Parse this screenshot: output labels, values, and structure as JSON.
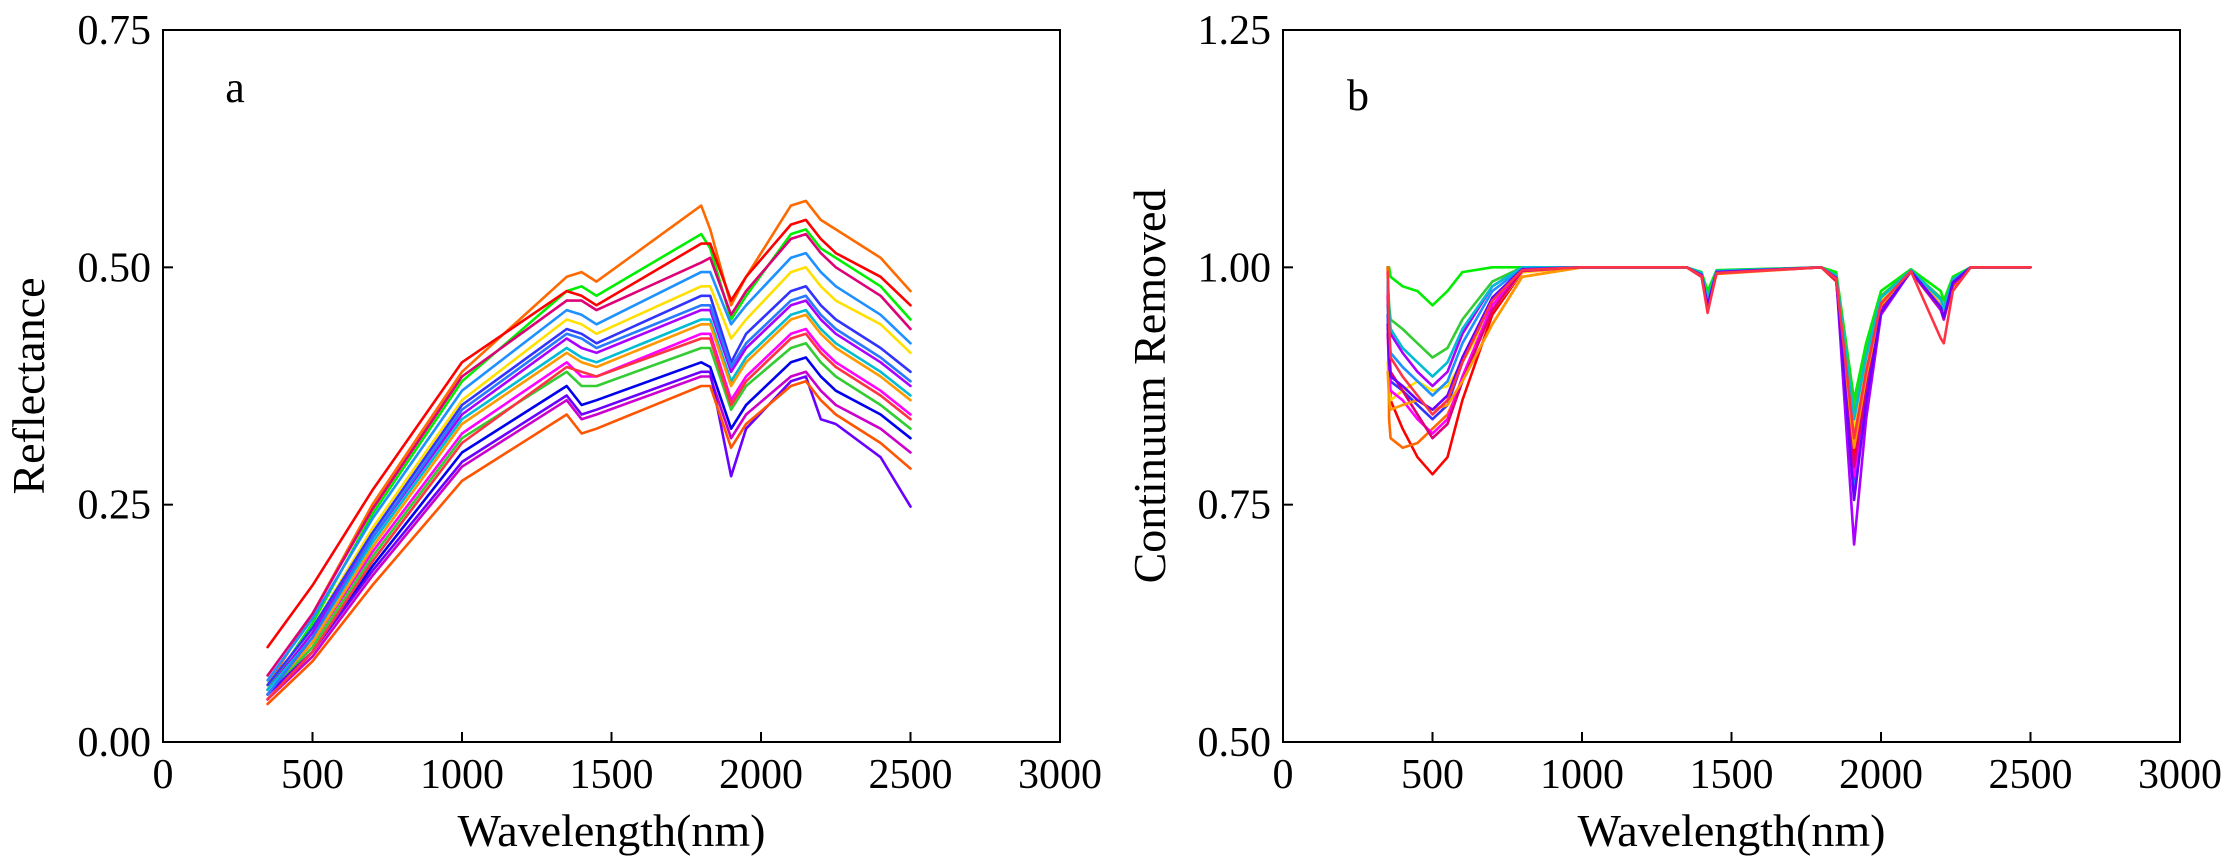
{
  "chart_data": [
    {
      "panel": "a",
      "type": "line",
      "title": "",
      "xlabel": "Wavelength(nm)",
      "ylabel": "Reflectance",
      "xlim": [
        0,
        3000
      ],
      "ylim": [
        0.0,
        0.75
      ],
      "xticks": [
        0,
        500,
        1000,
        1500,
        2000,
        2500,
        3000
      ],
      "xtick_labels": [
        "0",
        "500",
        "1000",
        "1500",
        "2000",
        "2500",
        "3000"
      ],
      "yticks": [
        0.0,
        0.25,
        0.5,
        0.75
      ],
      "ytick_labels": [
        "0.00",
        "0.25",
        "0.50",
        "0.75"
      ],
      "grid": false,
      "legend": "none",
      "x": [
        350,
        500,
        700,
        1000,
        1350,
        1400,
        1450,
        1800,
        1830,
        1900,
        1950,
        2100,
        2150,
        2200,
        2250,
        2400,
        2500
      ],
      "series": [
        {
          "name": "s1",
          "color": "#ff6a00",
          "values": [
            0.06,
            0.135,
            0.25,
            0.39,
            0.49,
            0.495,
            0.485,
            0.565,
            0.54,
            0.46,
            0.49,
            0.565,
            0.57,
            0.55,
            0.54,
            0.51,
            0.475
          ]
        },
        {
          "name": "s2",
          "color": "#00ee00",
          "values": [
            0.055,
            0.125,
            0.24,
            0.38,
            0.475,
            0.48,
            0.47,
            0.535,
            0.52,
            0.445,
            0.47,
            0.535,
            0.54,
            0.52,
            0.51,
            0.48,
            0.445
          ]
        },
        {
          "name": "s3",
          "color": "#ff0000",
          "values": [
            0.1,
            0.165,
            0.265,
            0.4,
            0.475,
            0.47,
            0.46,
            0.525,
            0.525,
            0.465,
            0.49,
            0.545,
            0.55,
            0.53,
            0.515,
            0.49,
            0.46
          ]
        },
        {
          "name": "s4",
          "color": "#dd0077",
          "values": [
            0.07,
            0.135,
            0.245,
            0.385,
            0.465,
            0.465,
            0.455,
            0.505,
            0.51,
            0.45,
            0.475,
            0.53,
            0.535,
            0.515,
            0.5,
            0.47,
            0.435
          ]
        },
        {
          "name": "s5",
          "color": "#1e90ff",
          "values": [
            0.065,
            0.13,
            0.235,
            0.37,
            0.455,
            0.45,
            0.44,
            0.495,
            0.495,
            0.44,
            0.46,
            0.51,
            0.515,
            0.495,
            0.48,
            0.45,
            0.42
          ]
        },
        {
          "name": "s6",
          "color": "#ffe000",
          "values": [
            0.06,
            0.12,
            0.225,
            0.36,
            0.445,
            0.44,
            0.43,
            0.48,
            0.48,
            0.425,
            0.445,
            0.495,
            0.5,
            0.48,
            0.465,
            0.44,
            0.41
          ]
        },
        {
          "name": "s7",
          "color": "#3333ff",
          "values": [
            0.06,
            0.12,
            0.22,
            0.355,
            0.435,
            0.43,
            0.42,
            0.47,
            0.47,
            0.4,
            0.43,
            0.475,
            0.48,
            0.46,
            0.445,
            0.415,
            0.39
          ]
        },
        {
          "name": "s8",
          "color": "#aa00ff",
          "values": [
            0.055,
            0.115,
            0.215,
            0.345,
            0.425,
            0.415,
            0.41,
            0.455,
            0.455,
            0.39,
            0.415,
            0.46,
            0.465,
            0.445,
            0.43,
            0.4,
            0.375
          ]
        },
        {
          "name": "s9",
          "color": "#00bcd4",
          "values": [
            0.055,
            0.11,
            0.21,
            0.34,
            0.415,
            0.405,
            0.4,
            0.445,
            0.445,
            0.38,
            0.405,
            0.45,
            0.455,
            0.435,
            0.42,
            0.39,
            0.365
          ]
        },
        {
          "name": "s10",
          "color": "#ff00ff",
          "values": [
            0.05,
            0.105,
            0.2,
            0.325,
            0.4,
            0.385,
            0.385,
            0.43,
            0.43,
            0.36,
            0.385,
            0.43,
            0.435,
            0.415,
            0.4,
            0.37,
            0.345
          ]
        },
        {
          "name": "s11",
          "color": "#ff9900",
          "values": [
            0.05,
            0.105,
            0.205,
            0.335,
            0.41,
            0.4,
            0.395,
            0.44,
            0.44,
            0.375,
            0.4,
            0.445,
            0.45,
            0.43,
            0.415,
            0.385,
            0.36
          ]
        },
        {
          "name": "s12",
          "color": "#33cc33",
          "values": [
            0.05,
            0.1,
            0.195,
            0.32,
            0.39,
            0.375,
            0.375,
            0.415,
            0.415,
            0.35,
            0.375,
            0.415,
            0.42,
            0.4,
            0.385,
            0.355,
            0.33
          ]
        },
        {
          "name": "s13",
          "color": "#0000ee",
          "values": [
            0.045,
            0.095,
            0.185,
            0.305,
            0.375,
            0.355,
            0.36,
            0.4,
            0.395,
            0.33,
            0.355,
            0.4,
            0.405,
            0.385,
            0.37,
            0.345,
            0.32
          ]
        },
        {
          "name": "s14",
          "color": "#cc00cc",
          "values": [
            0.045,
            0.09,
            0.175,
            0.29,
            0.36,
            0.34,
            0.345,
            0.385,
            0.385,
            0.32,
            0.345,
            0.385,
            0.39,
            0.37,
            0.355,
            0.33,
            0.305
          ]
        },
        {
          "name": "s15",
          "color": "#6a00ff",
          "values": [
            0.05,
            0.095,
            0.18,
            0.295,
            0.365,
            0.345,
            0.35,
            0.39,
            0.39,
            0.28,
            0.33,
            0.38,
            0.385,
            0.34,
            0.335,
            0.3,
            0.248
          ]
        },
        {
          "name": "s16",
          "color": "#ff5500",
          "values": [
            0.04,
            0.085,
            0.165,
            0.275,
            0.345,
            0.325,
            0.33,
            0.375,
            0.375,
            0.31,
            0.335,
            0.375,
            0.38,
            0.36,
            0.345,
            0.315,
            0.288
          ]
        },
        {
          "name": "s17",
          "color": "#ff3344",
          "values": [
            0.045,
            0.095,
            0.19,
            0.315,
            0.395,
            0.39,
            0.385,
            0.425,
            0.425,
            0.355,
            0.38,
            0.425,
            0.43,
            0.41,
            0.395,
            0.365,
            0.34
          ]
        },
        {
          "name": "s18",
          "color": "#2979ff",
          "values": [
            0.05,
            0.11,
            0.215,
            0.35,
            0.43,
            0.425,
            0.415,
            0.46,
            0.46,
            0.395,
            0.42,
            0.465,
            0.47,
            0.45,
            0.435,
            0.405,
            0.38
          ]
        }
      ]
    },
    {
      "panel": "b",
      "type": "line",
      "title": "",
      "xlabel": "Wavelength(nm)",
      "ylabel": "Continuum Removed",
      "xlim": [
        0,
        3000
      ],
      "ylim": [
        0.5,
        1.25
      ],
      "xticks": [
        0,
        500,
        1000,
        1500,
        2000,
        2500,
        3000
      ],
      "xtick_labels": [
        "0",
        "500",
        "1000",
        "1500",
        "2000",
        "2500",
        "3000"
      ],
      "yticks": [
        0.5,
        0.75,
        1.0,
        1.25
      ],
      "ytick_labels": [
        "0.50",
        "0.75",
        "1.00",
        "1.25"
      ],
      "grid": false,
      "legend": "none",
      "x": [
        350,
        355,
        360,
        400,
        450,
        500,
        550,
        600,
        700,
        800,
        1000,
        1350,
        1400,
        1420,
        1450,
        1800,
        1850,
        1910,
        1950,
        2000,
        2100,
        2200,
        2210,
        2240,
        2300,
        2500
      ],
      "series": [
        {
          "name": "s1",
          "color": "#ff0000",
          "values": [
            1.0,
            0.9,
            0.86,
            0.83,
            0.8,
            0.782,
            0.8,
            0.86,
            0.95,
            0.995,
            1.0,
            1.0,
            0.99,
            0.965,
            0.995,
            1.0,
            0.99,
            0.8,
            0.88,
            0.96,
            0.995,
            0.96,
            0.95,
            0.985,
            1.0,
            1.0
          ]
        },
        {
          "name": "s2",
          "color": "#00ee00",
          "values": [
            1.0,
            1.0,
            0.99,
            0.98,
            0.975,
            0.96,
            0.975,
            0.995,
            1.0,
            1.0,
            1.0,
            1.0,
            0.995,
            0.975,
            0.997,
            1.0,
            0.995,
            0.86,
            0.92,
            0.975,
            0.998,
            0.975,
            0.965,
            0.99,
            1.0,
            1.0
          ]
        },
        {
          "name": "s3",
          "color": "#ff6a00",
          "values": [
            1.0,
            0.84,
            0.82,
            0.81,
            0.815,
            0.83,
            0.845,
            0.88,
            0.94,
            0.99,
            1.0,
            1.0,
            0.99,
            0.955,
            0.993,
            1.0,
            0.985,
            0.785,
            0.87,
            0.955,
            0.995,
            0.955,
            0.945,
            0.98,
            1.0,
            1.0
          ]
        },
        {
          "name": "s4",
          "color": "#3333ff",
          "values": [
            0.95,
            0.9,
            0.88,
            0.87,
            0.855,
            0.84,
            0.855,
            0.9,
            0.965,
            0.998,
            1.0,
            1.0,
            0.992,
            0.96,
            0.995,
            1.0,
            0.988,
            0.77,
            0.865,
            0.955,
            0.996,
            0.96,
            0.948,
            0.985,
            1.0,
            1.0
          ]
        },
        {
          "name": "s5",
          "color": "#ffe000",
          "values": [
            0.9,
            0.87,
            0.86,
            0.87,
            0.88,
            0.87,
            0.875,
            0.9,
            0.955,
            0.995,
            1.0,
            1.0,
            0.993,
            0.96,
            0.995,
            1.0,
            0.99,
            0.83,
            0.9,
            0.965,
            0.997,
            0.965,
            0.955,
            0.987,
            1.0,
            1.0
          ]
        },
        {
          "name": "s6",
          "color": "#aa00ff",
          "values": [
            0.98,
            0.95,
            0.93,
            0.91,
            0.89,
            0.875,
            0.89,
            0.93,
            0.98,
            1.0,
            1.0,
            1.0,
            0.992,
            0.958,
            0.995,
            1.0,
            0.99,
            0.708,
            0.84,
            0.95,
            0.996,
            0.955,
            0.945,
            0.982,
            1.0,
            1.0
          ]
        },
        {
          "name": "s7",
          "color": "#1e90ff",
          "values": [
            0.96,
            0.93,
            0.91,
            0.895,
            0.88,
            0.865,
            0.88,
            0.92,
            0.975,
            0.999,
            1.0,
            1.0,
            0.993,
            0.962,
            0.996,
            1.0,
            0.99,
            0.76,
            0.86,
            0.955,
            0.996,
            0.96,
            0.95,
            0.985,
            1.0,
            1.0
          ]
        },
        {
          "name": "s8",
          "color": "#ff00ff",
          "values": [
            0.93,
            0.89,
            0.87,
            0.86,
            0.84,
            0.825,
            0.84,
            0.885,
            0.96,
            0.997,
            1.0,
            1.0,
            0.991,
            0.957,
            0.994,
            1.0,
            0.987,
            0.78,
            0.868,
            0.956,
            0.996,
            0.958,
            0.946,
            0.983,
            1.0,
            1.0
          ]
        },
        {
          "name": "s9",
          "color": "#33cc33",
          "values": [
            0.99,
            0.96,
            0.945,
            0.935,
            0.92,
            0.905,
            0.915,
            0.945,
            0.985,
            1.0,
            1.0,
            1.0,
            0.994,
            0.968,
            0.996,
            1.0,
            0.992,
            0.85,
            0.91,
            0.97,
            0.997,
            0.968,
            0.958,
            0.988,
            1.0,
            1.0
          ]
        },
        {
          "name": "s10",
          "color": "#dd0077",
          "values": [
            0.97,
            0.92,
            0.89,
            0.87,
            0.845,
            0.82,
            0.835,
            0.88,
            0.955,
            0.996,
            1.0,
            1.0,
            0.99,
            0.955,
            0.994,
            1.0,
            0.986,
            0.79,
            0.872,
            0.957,
            0.996,
            0.957,
            0.946,
            0.983,
            1.0,
            1.0
          ]
        },
        {
          "name": "s11",
          "color": "#ff9900",
          "values": [
            0.89,
            0.86,
            0.85,
            0.855,
            0.86,
            0.85,
            0.855,
            0.88,
            0.94,
            0.99,
            1.0,
            1.0,
            0.991,
            0.958,
            0.994,
            1.0,
            0.988,
            0.81,
            0.885,
            0.96,
            0.996,
            0.96,
            0.95,
            0.985,
            1.0,
            1.0
          ]
        },
        {
          "name": "s12",
          "color": "#00bcd4",
          "values": [
            0.985,
            0.955,
            0.935,
            0.915,
            0.9,
            0.885,
            0.9,
            0.935,
            0.98,
            1.0,
            1.0,
            1.0,
            0.994,
            0.966,
            0.996,
            1.0,
            0.991,
            0.84,
            0.905,
            0.968,
            0.997,
            0.966,
            0.956,
            0.987,
            1.0,
            1.0
          ]
        },
        {
          "name": "s13",
          "color": "#6a00ff",
          "values": [
            0.94,
            0.9,
            0.885,
            0.875,
            0.86,
            0.85,
            0.865,
            0.905,
            0.968,
            0.998,
            1.0,
            1.0,
            0.992,
            0.96,
            0.995,
            1.0,
            0.989,
            0.755,
            0.858,
            0.953,
            0.996,
            0.958,
            0.947,
            0.984,
            1.0,
            1.0
          ]
        },
        {
          "name": "s14",
          "color": "#ff3344",
          "values": [
            0.995,
            0.94,
            0.905,
            0.885,
            0.865,
            0.845,
            0.86,
            0.9,
            0.965,
            0.997,
            1.0,
            1.0,
            0.991,
            0.952,
            0.994,
            1.0,
            0.988,
            0.82,
            0.89,
            0.962,
            0.996,
            0.925,
            0.92,
            0.975,
            1.0,
            1.0
          ]
        }
      ]
    }
  ]
}
